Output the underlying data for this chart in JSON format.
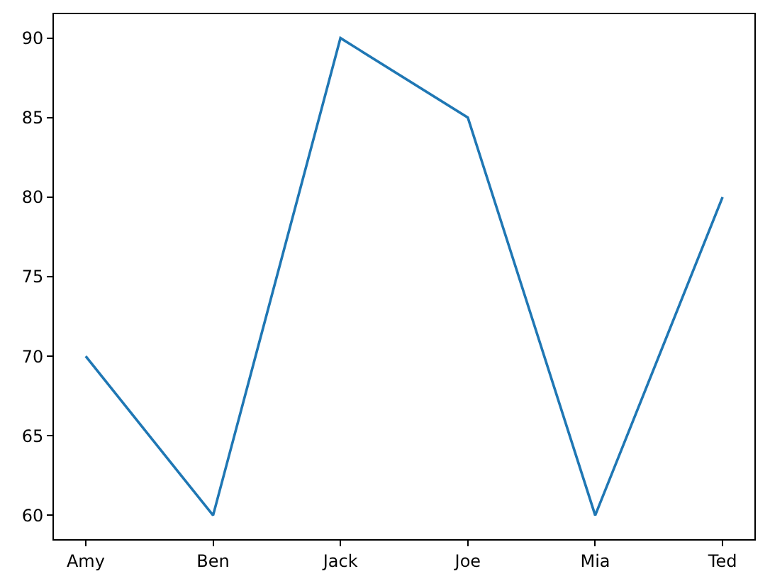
{
  "chart_data": {
    "type": "line",
    "categories": [
      "Amy",
      "Ben",
      "Jack",
      "Joe",
      "Mia",
      "Ted"
    ],
    "series": [
      {
        "color": "#1f77b4",
        "values": [
          70,
          60,
          90,
          85,
          60,
          80
        ]
      }
    ],
    "ylim": [
      58.5,
      91.5
    ],
    "yticks": [
      60,
      65,
      70,
      75,
      80,
      85,
      90
    ],
    "grid": false,
    "legend": false,
    "marker": "none",
    "line_style": "solid"
  }
}
